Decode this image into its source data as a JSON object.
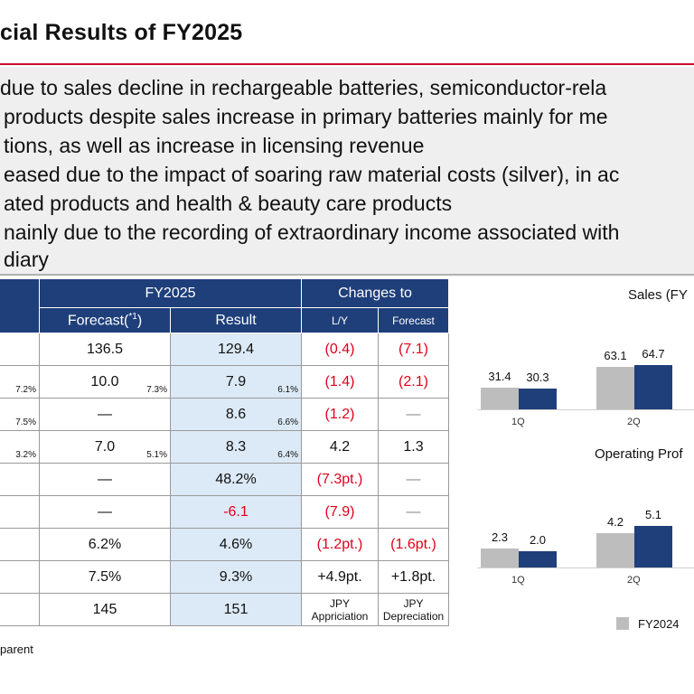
{
  "title": "cial Results of FY2025",
  "summary_lines": [
    "due to sales decline in rechargeable batteries, semiconductor-rela",
    "products despite sales increase in primary batteries mainly for me",
    "tions, as well as increase in licensing revenue",
    "eased due to the impact of soaring raw material costs (silver), in ac",
    "ated products and health & beauty care products",
    "nainly due to the recording of extraordinary income associated with",
    "diary"
  ],
  "table": {
    "header_fy": "FY2025",
    "header_changes": "Changes to",
    "header_forecast": "Forecast(",
    "header_forecast_note": "*1",
    "header_forecast_close": ")",
    "header_result": "Result",
    "header_ly": "L/Y",
    "header_vs_forecast": "Forecast",
    "rows": [
      {
        "left_pct": "",
        "forecast": "136.5",
        "forecast_pct": "",
        "result": "129.4",
        "result_pct": "",
        "ly": "(0.4)",
        "ly_red": true,
        "fc": "(7.1)",
        "fc_red": true
      },
      {
        "left_pct": "7.2%",
        "forecast": "10.0",
        "forecast_pct": "7.3%",
        "result": "7.9",
        "result_pct": "6.1%",
        "ly": "(1.4)",
        "ly_red": true,
        "fc": "(2.1)",
        "fc_red": true
      },
      {
        "left_pct": "7.5%",
        "forecast": "—",
        "forecast_pct": "",
        "result": "8.6",
        "result_pct": "6.6%",
        "ly": "(1.2)",
        "ly_red": true,
        "fc": "—",
        "fc_red": false
      },
      {
        "left_pct": "3.2%",
        "forecast": "7.0",
        "forecast_pct": "5.1%",
        "result": "8.3",
        "result_pct": "6.4%",
        "ly": "4.2",
        "ly_red": false,
        "fc": "1.3",
        "fc_red": false
      },
      {
        "left_pct": "",
        "forecast": "—",
        "forecast_pct": "",
        "result": "48.2%",
        "result_pct": "",
        "ly": "(7.3pt.)",
        "ly_red": true,
        "fc": "—",
        "fc_red": false
      },
      {
        "left_pct": "",
        "forecast": "—",
        "forecast_pct": "",
        "result": "-6.1",
        "result_red": true,
        "result_pct": "",
        "ly": "(7.9)",
        "ly_red": true,
        "fc": "—",
        "fc_red": false
      },
      {
        "left_pct": "",
        "forecast": "6.2%",
        "forecast_pct": "",
        "result": "4.6%",
        "result_pct": "",
        "ly": "(1.2pt.)",
        "ly_red": true,
        "fc": "(1.6pt.)",
        "fc_red": true
      },
      {
        "left_pct": "",
        "forecast": "7.5%",
        "forecast_pct": "",
        "result": "9.3%",
        "result_pct": "",
        "ly": "+4.9pt.",
        "ly_red": false,
        "fc": "+1.8pt.",
        "fc_red": false
      },
      {
        "left_pct": "",
        "forecast": "145",
        "forecast_pct": "",
        "result": "151",
        "result_pct": "",
        "ly": "JPY\nAppriciation",
        "ly_red": false,
        "fc": "JPY\nDepreciation",
        "fc_red": false,
        "small_changes": true
      }
    ]
  },
  "chart_data": [
    {
      "type": "bar",
      "title": "Sales (FY",
      "categories": [
        "1Q",
        "2Q"
      ],
      "series": [
        {
          "name": "FY2024",
          "values": [
            31.4,
            63.1
          ]
        },
        {
          "name": "",
          "values": [
            30.3,
            64.7
          ]
        }
      ],
      "colors": [
        "#bdbdbd",
        "#1f3f7a"
      ]
    },
    {
      "type": "bar",
      "title": "Operating Prof",
      "categories": [
        "1Q",
        "2Q"
      ],
      "series": [
        {
          "name": "FY2024",
          "values": [
            2.3,
            4.2
          ]
        },
        {
          "name": "",
          "values": [
            2.0,
            5.1
          ]
        }
      ],
      "colors": [
        "#bdbdbd",
        "#1f3f7a"
      ]
    }
  ],
  "legend": {
    "label": "FY2024",
    "color": "#bdbdbd"
  },
  "footnote": "parent"
}
